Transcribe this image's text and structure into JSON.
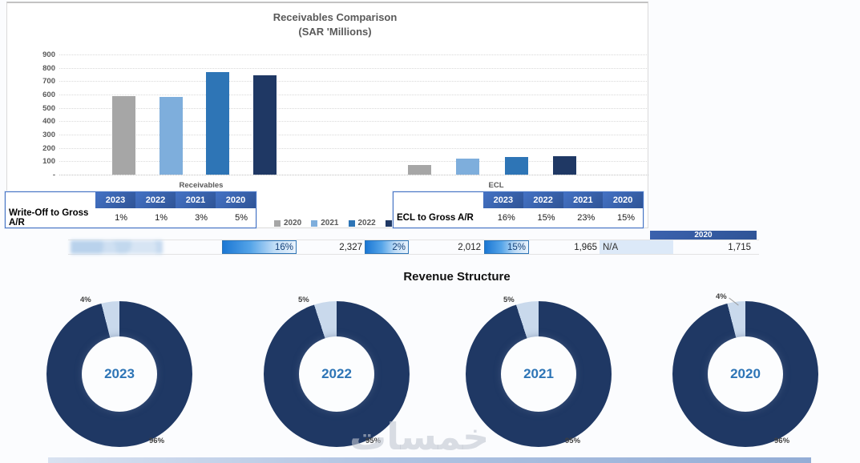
{
  "page": {
    "background": "#FBFCFE"
  },
  "bar_chart": {
    "title_line1": "Receivables Comparison",
    "title_line2": "(SAR 'Millions)"
  },
  "chart_data": [
    {
      "type": "bar",
      "title": "Receivables Comparison (SAR 'Millions)",
      "categories": [
        "Receivables",
        "ECL"
      ],
      "series": [
        {
          "name": "2020",
          "color": "#A6A6A6",
          "values": [
            590,
            75
          ]
        },
        {
          "name": "2021",
          "color": "#7EAEDC",
          "values": [
            580,
            120
          ]
        },
        {
          "name": "2022",
          "color": "#2E75B6",
          "values": [
            770,
            135
          ]
        },
        {
          "name": "2023",
          "color": "#1F3864",
          "values": [
            745,
            140
          ]
        }
      ],
      "ylim": [
        0,
        900
      ],
      "y_ticks": [
        "900",
        "800",
        "700",
        "600",
        "500",
        "400",
        "300",
        "200",
        "100",
        "-"
      ],
      "y_tick_values": [
        900,
        800,
        700,
        600,
        500,
        400,
        300,
        200,
        100,
        0
      ],
      "grid": true,
      "legend_position": "bottom"
    },
    {
      "type": "pie",
      "title": "2023",
      "labels": [
        "96%",
        "4%"
      ],
      "values": [
        96,
        4
      ],
      "colors": [
        "#1F3864",
        "#C9D9EC"
      ]
    },
    {
      "type": "pie",
      "title": "2022",
      "labels": [
        "95%",
        "5%"
      ],
      "values": [
        95,
        5
      ],
      "colors": [
        "#1F3864",
        "#C9D9EC"
      ]
    },
    {
      "type": "pie",
      "title": "2021",
      "labels": [
        "95%",
        "5%"
      ],
      "values": [
        95,
        5
      ],
      "colors": [
        "#1F3864",
        "#C9D9EC"
      ]
    },
    {
      "type": "pie",
      "title": "2020",
      "labels": [
        "96%",
        "4%"
      ],
      "values": [
        96,
        4
      ],
      "colors": [
        "#1F3864",
        "#C9D9EC"
      ]
    }
  ],
  "ratio_tables": [
    {
      "row_label": "Write-Off to Gross A/R",
      "columns": [
        "2023",
        "2022",
        "2021",
        "2020"
      ],
      "values": [
        "1%",
        "1%",
        "3%",
        "5%"
      ]
    },
    {
      "row_label": "ECL to Gross A/R",
      "columns": [
        "2023",
        "2022",
        "2021",
        "2020"
      ],
      "values": [
        "16%",
        "15%",
        "23%",
        "15%"
      ]
    }
  ],
  "metrics_row": {
    "year_header": "2020",
    "cells": [
      {
        "type": "blurred",
        "value": ""
      },
      {
        "type": "databar",
        "value": "16%"
      },
      {
        "type": "number",
        "value": "2,327"
      },
      {
        "type": "databar",
        "value": "2%"
      },
      {
        "type": "number",
        "value": "2,012"
      },
      {
        "type": "databar",
        "value": "15%"
      },
      {
        "type": "number",
        "value": "1,965"
      },
      {
        "type": "na",
        "value": "N/A"
      },
      {
        "type": "number",
        "value": "1,715"
      }
    ]
  },
  "donut_section": {
    "title": "Revenue Structure"
  },
  "watermark": {
    "text": "خمسات"
  }
}
